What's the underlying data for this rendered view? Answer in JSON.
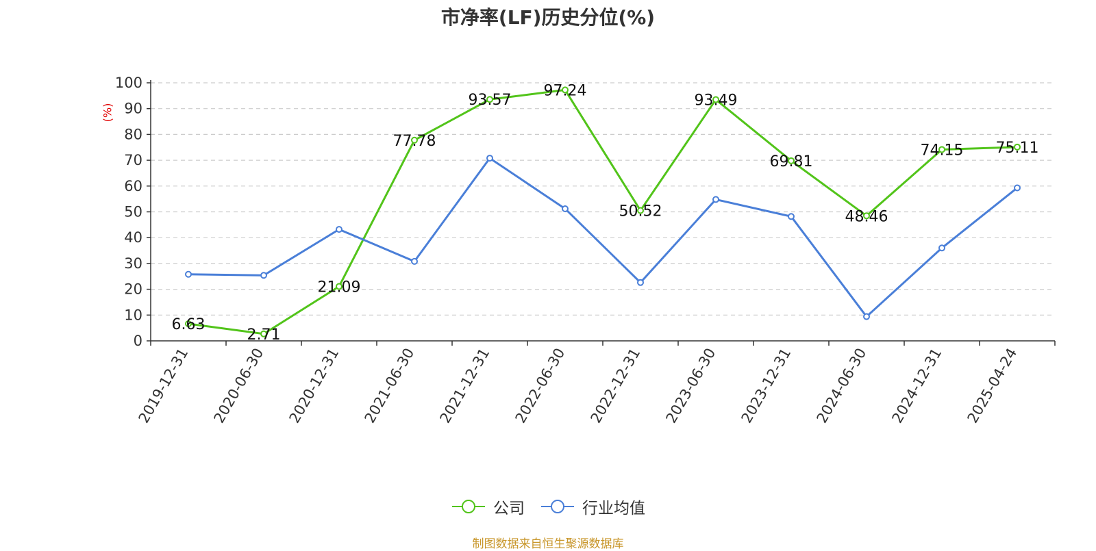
{
  "title": "市净率(LF)历史分位(%)",
  "source": "制图数据来自恒生聚源数据库",
  "chart_data": {
    "type": "line",
    "ylabel": "(%)",
    "ylim": [
      0,
      100
    ],
    "ytick_step": 10,
    "grid": true,
    "legend_placement": "bottom-center",
    "categories": [
      "2019-12-31",
      "2020-06-30",
      "2020-12-31",
      "2021-06-30",
      "2021-12-31",
      "2022-06-30",
      "2022-12-31",
      "2023-06-30",
      "2023-12-31",
      "2024-06-30",
      "2024-12-31",
      "2025-04-24"
    ],
    "series": [
      {
        "name": "公司",
        "color": "#52c41a",
        "show_labels": true,
        "values": [
          6.63,
          2.71,
          21.09,
          77.78,
          93.57,
          97.24,
          50.52,
          93.49,
          69.81,
          48.46,
          74.15,
          75.11
        ]
      },
      {
        "name": "行业均值",
        "color": "#4a7fd8",
        "show_labels": false,
        "values": [
          25.8,
          25.4,
          43.2,
          30.8,
          70.8,
          51.2,
          22.6,
          54.8,
          48.2,
          9.4,
          36.0,
          59.3
        ]
      }
    ]
  }
}
